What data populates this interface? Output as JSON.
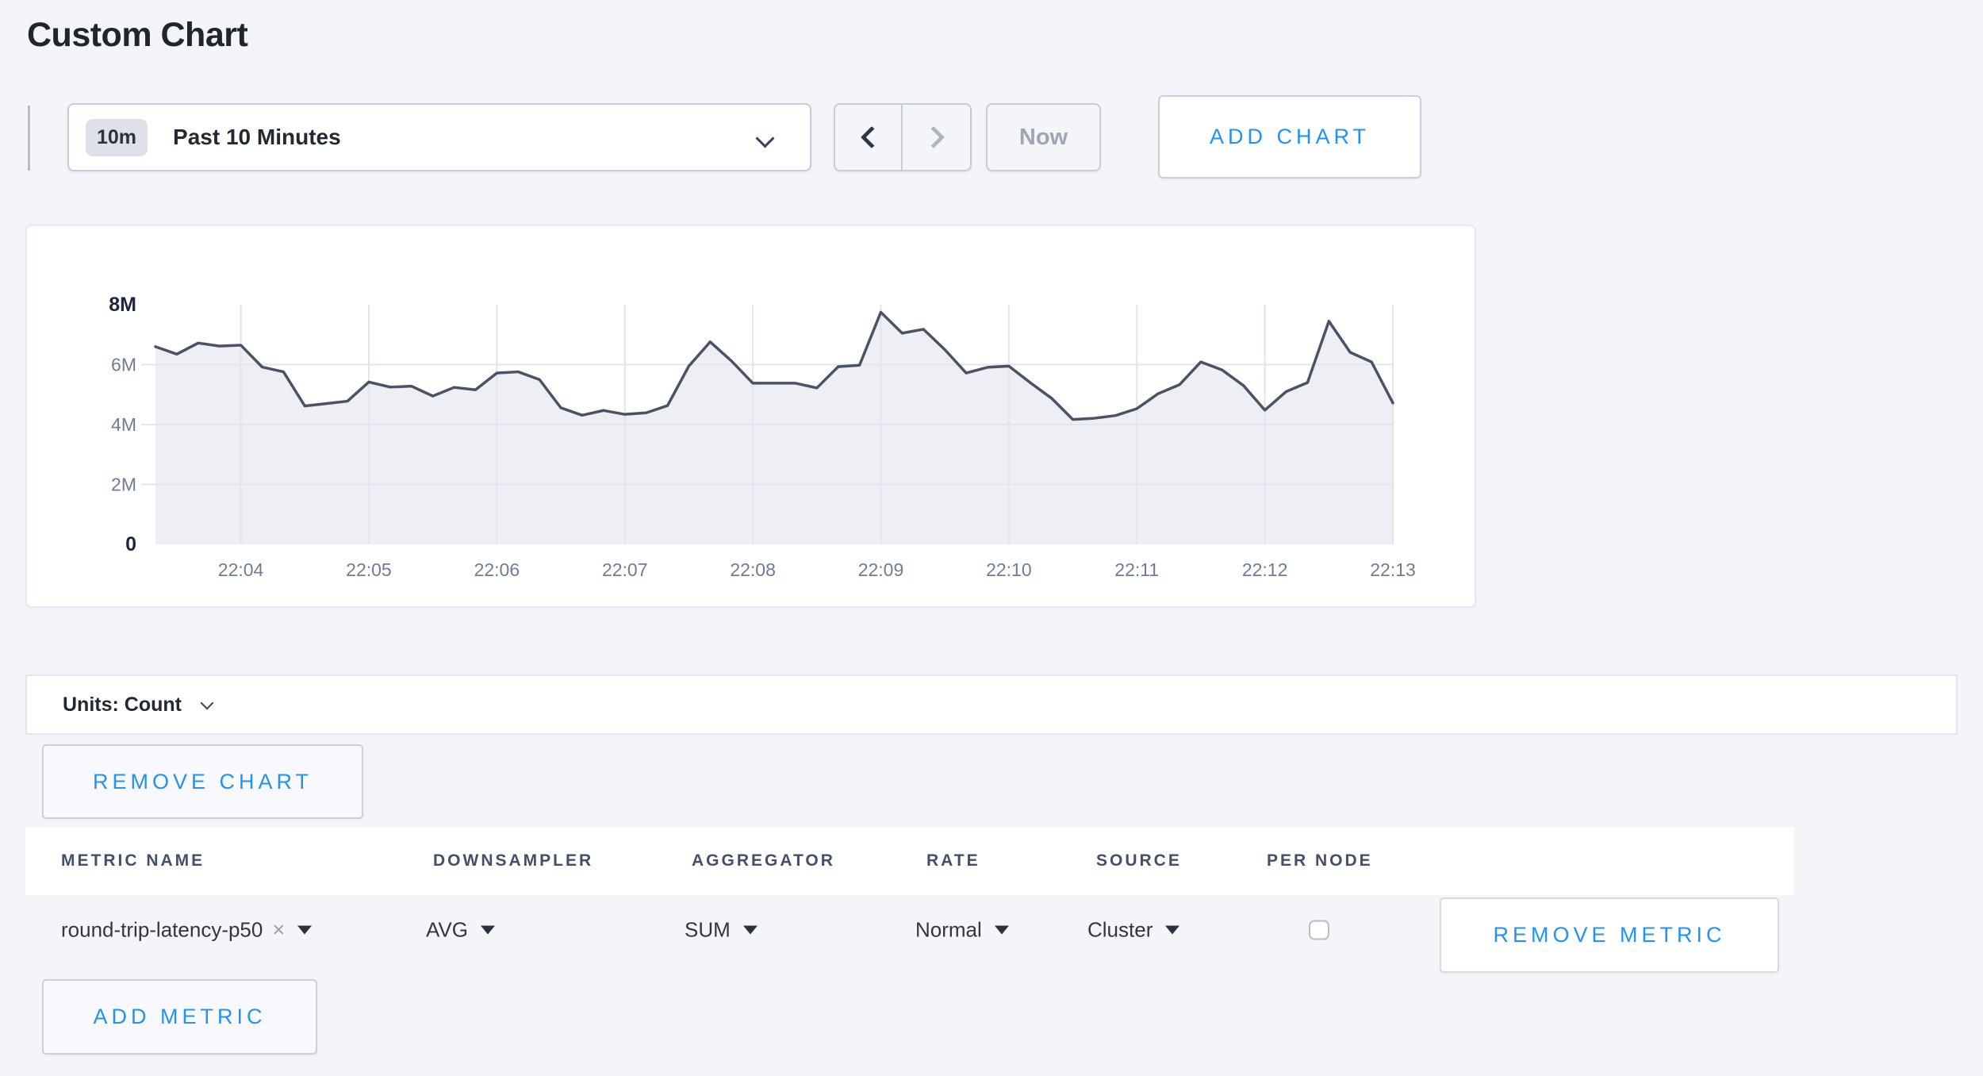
{
  "page": {
    "title": "Custom Chart",
    "background_color": "#f4f5f9",
    "accent_blue": "#2292f4"
  },
  "toolbar": {
    "time_window_badge": "10m",
    "time_window_label": "Past 10 Minutes",
    "now_label": "Now",
    "add_chart_label": "ADD CHART"
  },
  "chart_data": {
    "type": "area",
    "unit": "Count",
    "legend_position": "none",
    "grid": true,
    "x_axis": {
      "ticks": [
        "22:04",
        "22:05",
        "22:06",
        "22:07",
        "22:08",
        "22:09",
        "22:10",
        "22:11",
        "22:12",
        "22:13"
      ],
      "start_time": "22:03:20",
      "interval_seconds": 10,
      "first_tick_index": 4,
      "tick_every": 6
    },
    "y_axis": {
      "max_millions": 8,
      "ylim": [
        0,
        8000000
      ],
      "ticks": [
        {
          "label": "0",
          "value_millions": 0,
          "bold": true,
          "gridline": false
        },
        {
          "label": "2M",
          "value_millions": 2,
          "bold": false,
          "gridline": true
        },
        {
          "label": "4M",
          "value_millions": 4,
          "bold": false,
          "gridline": true
        },
        {
          "label": "6M",
          "value_millions": 6,
          "bold": false,
          "gridline": true
        },
        {
          "label": "8M",
          "value_millions": 8,
          "bold": true,
          "gridline": false
        }
      ]
    },
    "series": [
      {
        "name": "round-trip-latency-p50",
        "values_millions": [
          6.6,
          6.35,
          6.72,
          6.62,
          6.65,
          5.92,
          5.76,
          4.62,
          4.7,
          4.78,
          5.42,
          5.25,
          5.28,
          4.95,
          5.24,
          5.16,
          5.72,
          5.76,
          5.5,
          4.56,
          4.31,
          4.47,
          4.34,
          4.39,
          4.63,
          5.95,
          6.76,
          6.12,
          5.38,
          5.38,
          5.38,
          5.22,
          5.93,
          5.98,
          7.75,
          7.05,
          7.18,
          6.5,
          5.72,
          5.91,
          5.95,
          5.4,
          4.88,
          4.17,
          4.21,
          4.3,
          4.53,
          5.03,
          5.33,
          6.09,
          5.82,
          5.3,
          4.48,
          5.1,
          5.4,
          7.45,
          6.41,
          6.09,
          4.72
        ]
      }
    ],
    "style": {
      "line_color": "#4a5365",
      "fill_color": "rgba(226,229,237,0.60)",
      "gridline_color": "#e1e5ee"
    }
  },
  "units_bar": {
    "label": "Units: Count"
  },
  "buttons": {
    "remove_chart": "REMOVE CHART",
    "remove_metric": "REMOVE METRIC",
    "add_metric": "ADD METRIC"
  },
  "metrics_table": {
    "columns": [
      "METRIC NAME",
      "DOWNSAMPLER",
      "AGGREGATOR",
      "RATE",
      "SOURCE",
      "PER NODE"
    ],
    "rows": [
      {
        "metric_name": "round-trip-latency-p50",
        "remove_symbol": "×",
        "downsampler": "AVG",
        "aggregator": "SUM",
        "rate": "Normal",
        "source": "Cluster",
        "per_node_checked": false
      }
    ]
  }
}
